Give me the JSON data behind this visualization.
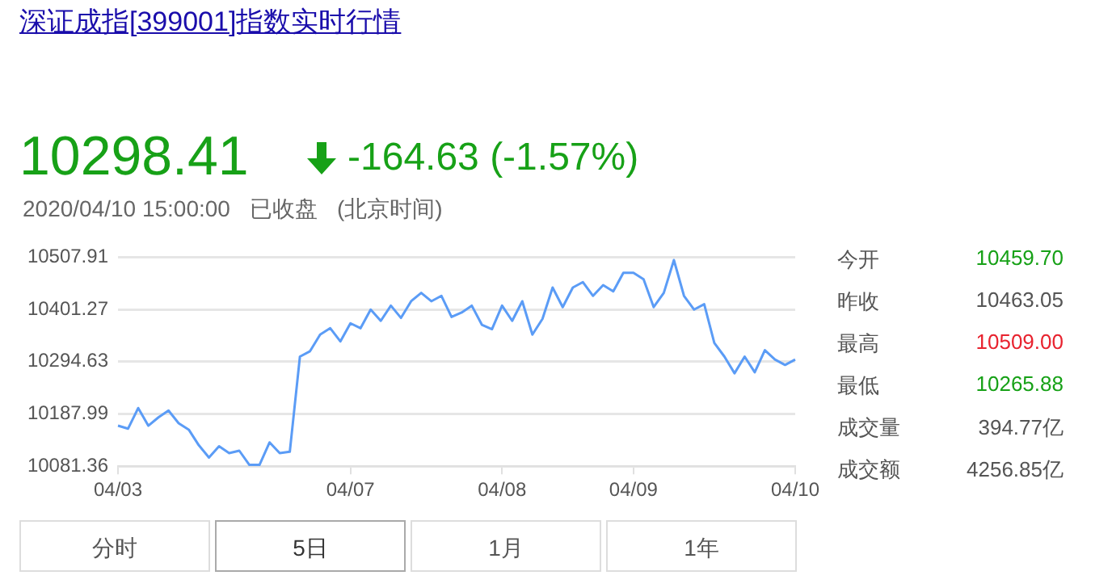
{
  "chart_data": {
    "type": "line",
    "title": "深证成指[399001]指数实时行情",
    "annotations": [
      "10298.41",
      "-164.63 (-1.57%)",
      "2020/04/10 15:00:00",
      "已收盘",
      "(北京时间)",
      "今开",
      "10459.70",
      "昨收",
      "10463.05",
      "最高",
      "10509.00",
      "最低",
      "10265.88",
      "成交量",
      "394.77亿",
      "成交额",
      "4256.85亿",
      "分时",
      "5日",
      "1月",
      "1年"
    ],
    "categories": [
      "04/03",
      null,
      null,
      null,
      null,
      null,
      null,
      null,
      null,
      null,
      null,
      null,
      null,
      null,
      null,
      null,
      null,
      null,
      null,
      null,
      null,
      null,
      null,
      "04/07",
      null,
      null,
      null,
      null,
      null,
      null,
      null,
      null,
      null,
      null,
      null,
      null,
      null,
      null,
      "04/08",
      null,
      null,
      null,
      null,
      null,
      null,
      null,
      null,
      null,
      null,
      null,
      null,
      "04/09",
      null,
      null,
      null,
      null,
      null,
      null,
      null,
      null,
      null,
      null,
      null,
      null,
      null,
      null,
      null,
      "04/10"
    ],
    "series": [
      {
        "color": "#5b9cf6",
        "values": [
          10164,
          10158,
          10200,
          10164,
          10181,
          10195,
          10169,
          10156,
          10124,
          10099,
          10122,
          10108,
          10113,
          10084,
          10084,
          10130,
          10108,
          10111,
          10305,
          10316,
          10350,
          10363,
          10336,
          10373,
          10363,
          10401,
          10378,
          10409,
          10384,
          10418,
          10435,
          10418,
          10429,
          10386,
          10395,
          10409,
          10370,
          10361,
          10409,
          10378,
          10418,
          10350,
          10382,
          10446,
          10406,
          10446,
          10457,
          10429,
          10451,
          10438,
          10476,
          10476,
          10463,
          10406,
          10435,
          10502,
          10429,
          10401,
          10412,
          10333,
          10305,
          10271,
          10305,
          10273,
          10318,
          10299,
          10288,
          10299
        ]
      }
    ],
    "ylim": [
      10081.36,
      10507.91
    ],
    "yticks": [
      10081.36,
      10187.99,
      10294.63,
      10401.27,
      10507.91
    ],
    "grid": "y",
    "legend": false,
    "marker": "none",
    "line_style": "solid"
  }
}
